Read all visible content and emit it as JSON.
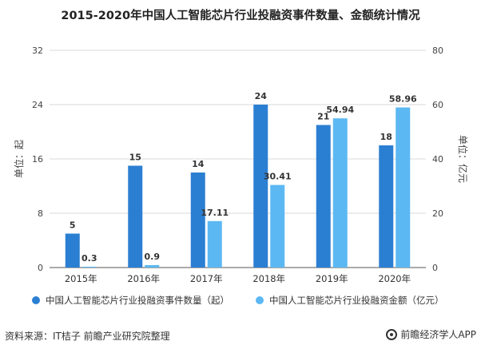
{
  "colors": {
    "series1": "#2b7fd2",
    "series2": "#5cb8f2",
    "grid": "#d9d9d9",
    "axis": "#555555"
  },
  "chart_data": {
    "type": "bar",
    "title": "2015-2020年中国人工智能芯片行业投融资事件数量、金额统计情况",
    "categories": [
      "2015年",
      "2016年",
      "2017年",
      "2018年",
      "2019年",
      "2020年"
    ],
    "series": [
      {
        "name": "中国人工智能芯片行业投融资事件数量（起）",
        "axis": "left",
        "values": [
          5,
          15,
          14,
          24,
          21,
          18
        ],
        "labels": [
          "5",
          "15",
          "14",
          "24",
          "21",
          "18"
        ]
      },
      {
        "name": "中国人工智能芯片行业投融资金额（亿元）",
        "axis": "right",
        "values": [
          0.3,
          0.9,
          17.11,
          30.41,
          54.94,
          58.96
        ],
        "labels": [
          "0.3",
          "0.9",
          "17.11",
          "30.41",
          "54.94",
          "58.96"
        ]
      }
    ],
    "ylabel": "单位：起",
    "y2label": "单位：亿元",
    "ylim": [
      0,
      32
    ],
    "y2lim": [
      0,
      80
    ],
    "yticks": [
      "0",
      "8",
      "16",
      "24",
      "32"
    ],
    "y2ticks": [
      "0",
      "20",
      "40",
      "60",
      "80"
    ],
    "legend": "bottom"
  },
  "source": "资料来源：IT桔子 前瞻产业研究院整理",
  "brand": "前瞻经济学人APP"
}
